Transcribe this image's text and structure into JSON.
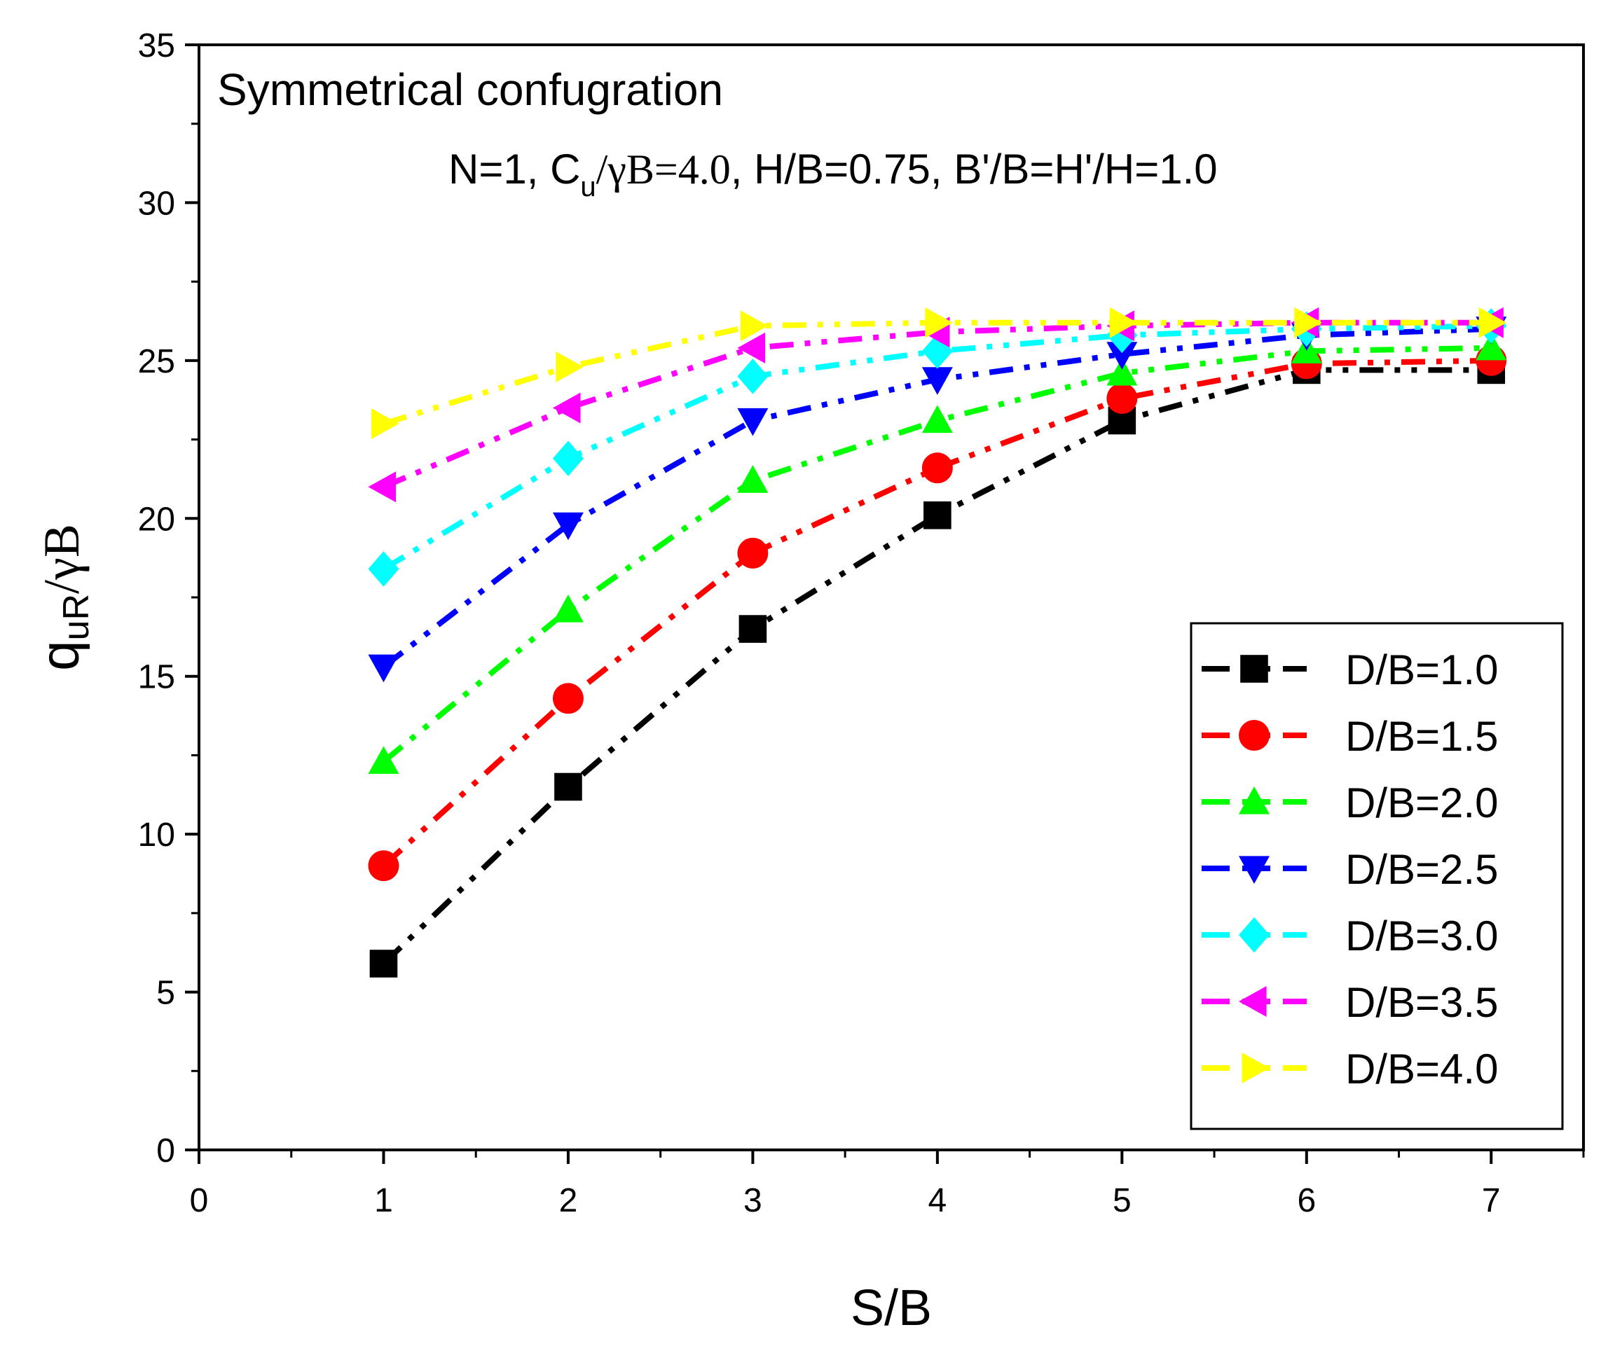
{
  "chart_data": {
    "type": "line",
    "title": "",
    "annotations": {
      "line1": "Symmetrical confugration",
      "line2_prefix": "N=1, C",
      "line2_sub": "u",
      "line2_mid": "/γB=4.0",
      "line2_suffix": ", H/B=0.75, B'/B=H'/H=1.0"
    },
    "xlabel": "S/B",
    "ylabel_main": "q",
    "ylabel_sub": "uR",
    "ylabel_suffix": "/γB",
    "xlim": [
      0,
      7.5
    ],
    "ylim": [
      0,
      35
    ],
    "xticks": [
      "0",
      "1",
      "2",
      "3",
      "4",
      "5",
      "6",
      "7"
    ],
    "yticks": [
      "0",
      "5",
      "10",
      "15",
      "20",
      "25",
      "30",
      "35"
    ],
    "x": [
      1,
      2,
      3,
      4,
      5,
      6,
      7
    ],
    "legend_position": "bottom-right",
    "series": [
      {
        "name": "D/B=1.0",
        "color": "#000000",
        "marker": "square",
        "values": [
          5.9,
          11.5,
          16.5,
          20.1,
          23.1,
          24.7,
          24.7
        ]
      },
      {
        "name": "D/B=1.5",
        "color": "#ff0000",
        "marker": "circle",
        "values": [
          9.0,
          14.3,
          18.9,
          21.6,
          23.8,
          24.9,
          25.0
        ]
      },
      {
        "name": "D/B=2.0",
        "color": "#00ff00",
        "marker": "triangle-up",
        "values": [
          12.3,
          17.1,
          21.2,
          23.1,
          24.6,
          25.3,
          25.4
        ]
      },
      {
        "name": "D/B=2.5",
        "color": "#0000ff",
        "marker": "triangle-down",
        "values": [
          15.3,
          19.8,
          23.1,
          24.4,
          25.2,
          25.8,
          26.0
        ]
      },
      {
        "name": "D/B=3.0",
        "color": "#00ffff",
        "marker": "diamond",
        "values": [
          18.4,
          21.9,
          24.5,
          25.3,
          25.8,
          26.0,
          26.1
        ]
      },
      {
        "name": "D/B=3.5",
        "color": "#ff00ff",
        "marker": "triangle-left",
        "values": [
          21.0,
          23.5,
          25.4,
          25.9,
          26.1,
          26.2,
          26.2
        ]
      },
      {
        "name": "D/B=4.0",
        "color": "#ffff00",
        "marker": "triangle-right",
        "values": [
          23.0,
          24.8,
          26.1,
          26.2,
          26.2,
          26.2,
          26.2
        ]
      }
    ]
  }
}
